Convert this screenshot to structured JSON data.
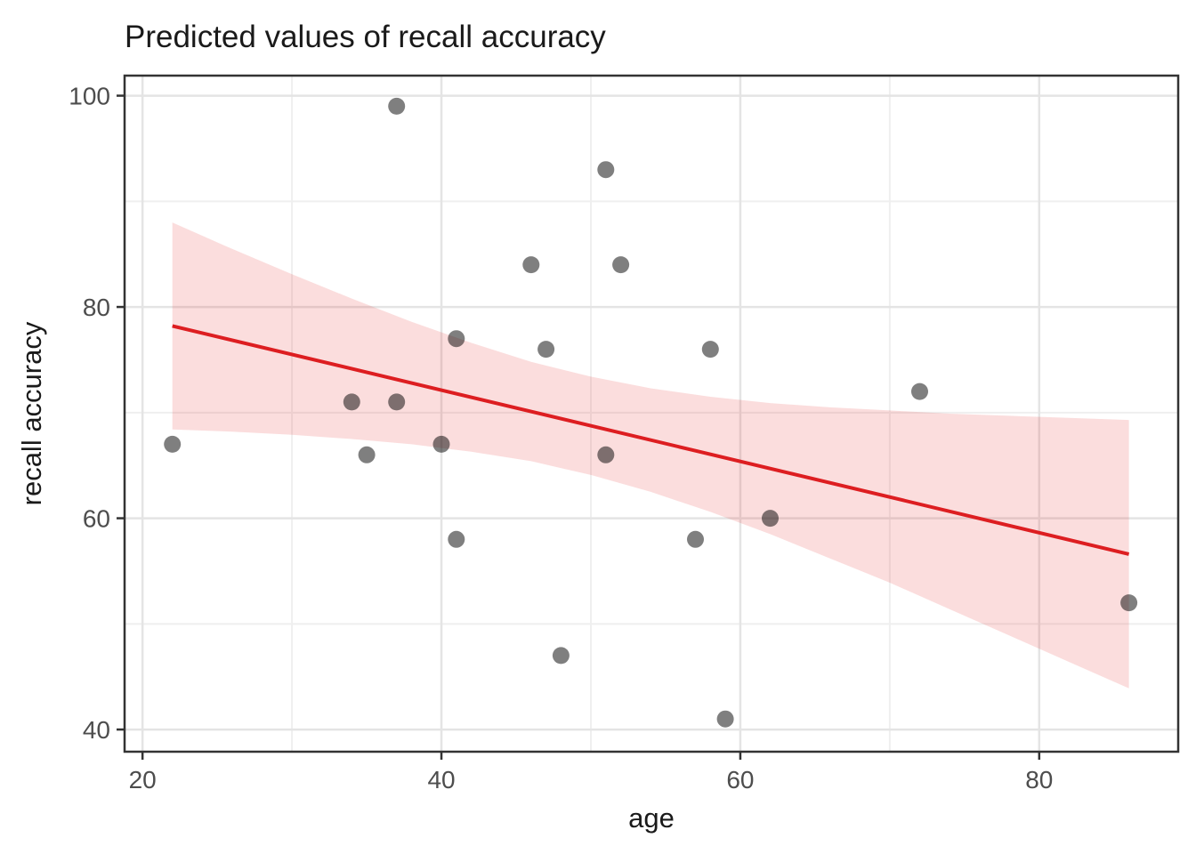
{
  "chart_data": {
    "type": "scatter",
    "title": "Predicted values of recall accuracy",
    "xlabel": "age",
    "ylabel": "recall accuracy",
    "x_ticks": [
      20,
      40,
      60,
      80
    ],
    "y_ticks": [
      40,
      60,
      80,
      100
    ],
    "x_minor_gridlines": [
      30,
      50,
      70
    ],
    "y_minor_gridlines": [
      50,
      70,
      90
    ],
    "xlim": [
      18.8,
      89.3
    ],
    "ylim": [
      37.9,
      101.9
    ],
    "grid": "on",
    "legend": "none",
    "point_keys": [
      "age",
      "recall_accuracy"
    ],
    "points": [
      [
        22,
        67
      ],
      [
        34,
        71
      ],
      [
        35,
        66
      ],
      [
        37,
        71
      ],
      [
        37,
        99
      ],
      [
        40,
        67
      ],
      [
        41,
        58
      ],
      [
        41,
        77
      ],
      [
        46,
        84
      ],
      [
        47,
        76
      ],
      [
        48,
        47
      ],
      [
        51,
        66
      ],
      [
        51,
        93
      ],
      [
        52,
        84
      ],
      [
        57,
        58
      ],
      [
        58,
        76
      ],
      [
        59,
        41
      ],
      [
        62,
        60
      ],
      [
        72,
        72
      ],
      [
        86,
        52
      ]
    ],
    "regression_line": {
      "x": [
        22,
        86
      ],
      "y": [
        78.2,
        56.6
      ]
    },
    "confidence_band": {
      "age": [
        22,
        26,
        30,
        34,
        38,
        42,
        46,
        50,
        54,
        58,
        62,
        66,
        70,
        74,
        78,
        82,
        86
      ],
      "upper": [
        88.0,
        85.5,
        83.1,
        80.8,
        78.6,
        76.6,
        74.8,
        73.4,
        72.3,
        71.5,
        70.9,
        70.5,
        70.2,
        69.9,
        69.7,
        69.5,
        69.3
      ],
      "lower": [
        68.4,
        68.2,
        67.9,
        67.5,
        67.0,
        66.3,
        65.4,
        64.1,
        62.5,
        60.6,
        58.5,
        56.2,
        53.9,
        51.4,
        48.9,
        46.4,
        43.9
      ]
    },
    "colors": {
      "point": "rgba(0,0,0,0.5)",
      "line": "#dd1e21",
      "band": "#e41a1c",
      "band_opacity": 0.15,
      "grid_major": "#e4e4e4",
      "grid_minor": "#efefef",
      "panel_border": "#333333",
      "tick_mark": "#333333",
      "tick_text": "#4d4d4d",
      "title_text": "#1a1a1a",
      "background": "#ffffff"
    }
  }
}
